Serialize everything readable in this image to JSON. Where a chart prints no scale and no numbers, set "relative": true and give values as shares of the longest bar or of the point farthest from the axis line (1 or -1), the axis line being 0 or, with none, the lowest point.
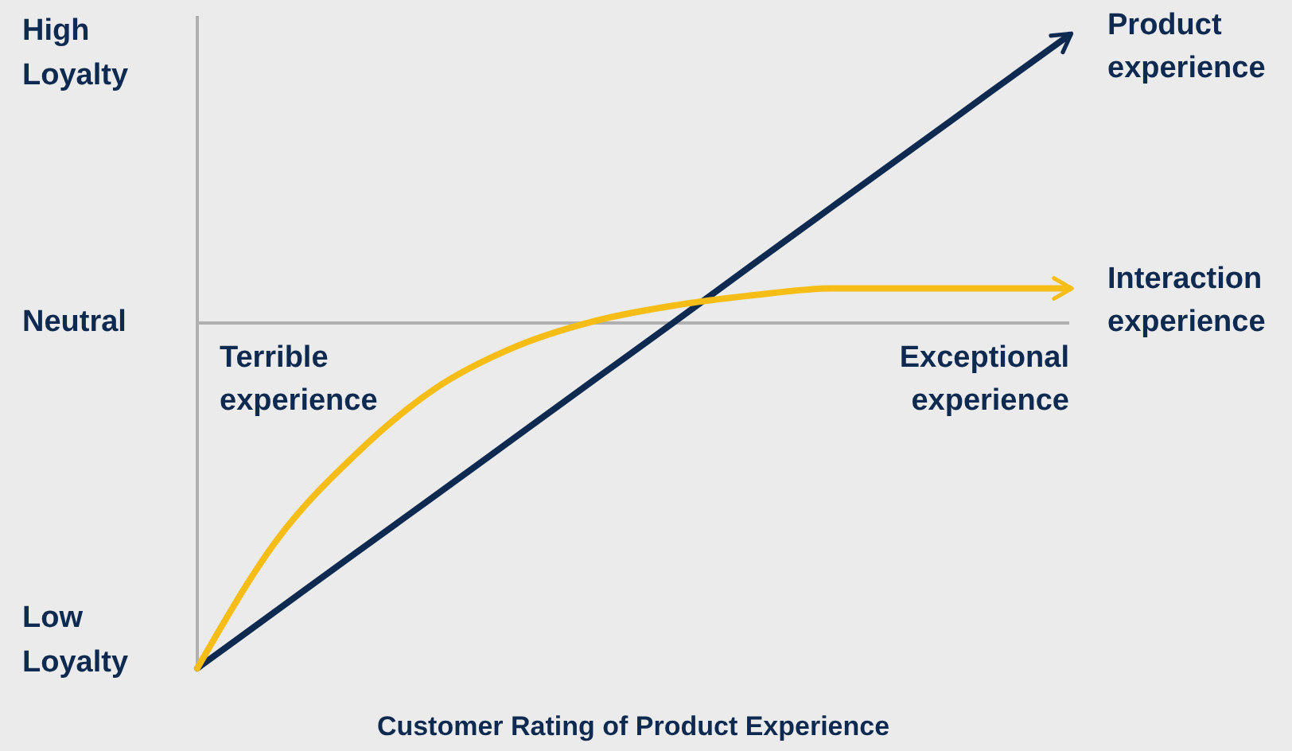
{
  "chart_data": {
    "type": "line",
    "relative": true,
    "xlabel": "Customer Rating of Product Experience",
    "categories": [
      null,
      null,
      null,
      null,
      null,
      null,
      null,
      null,
      null,
      null,
      null,
      null
    ],
    "series": [
      {
        "name": "Product experience",
        "color": "#0e2a50",
        "values": [
          -1,
          -0.833,
          -0.666,
          -0.5,
          -0.333,
          -0.166,
          0,
          0.168,
          0.335,
          0.501,
          0.668,
          0.834
        ]
      },
      {
        "name": "Interaction experience",
        "color": "#f6bd16",
        "values": [
          -1,
          -0.63,
          -0.38,
          -0.19,
          -0.07,
          0.005,
          0.05,
          0.08,
          0.1,
          0.1,
          0.1,
          0.1
        ]
      }
    ],
    "annotations": [
      "High Loyalty",
      "Neutral",
      "Low Loyalty",
      "Terrible experience",
      "Exceptional experience"
    ]
  }
}
